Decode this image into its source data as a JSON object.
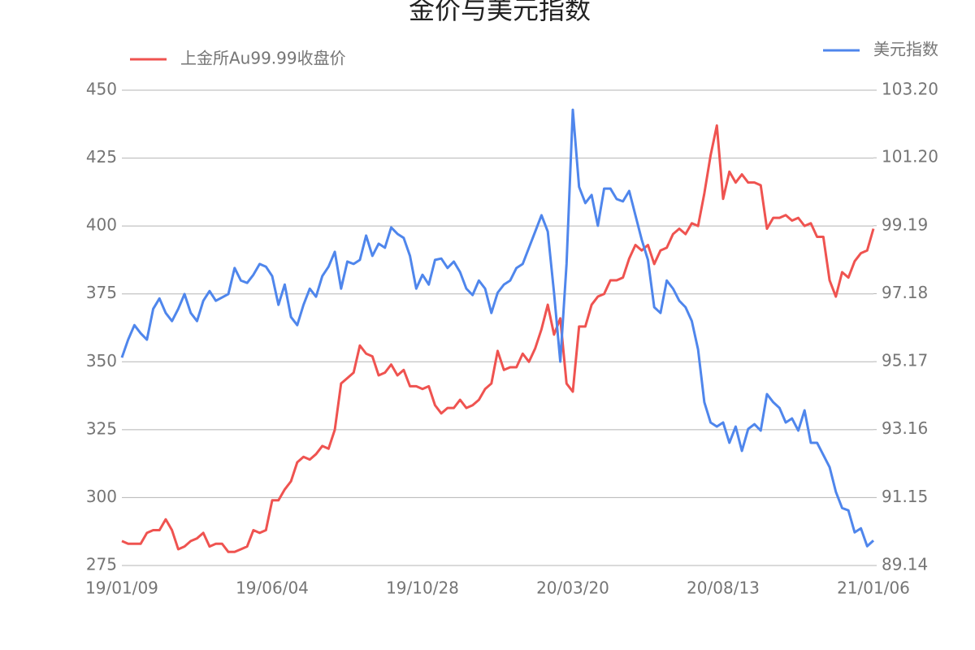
{
  "chart_data": {
    "type": "line",
    "title": "金价与美元指数",
    "categories": [
      "19/01/09",
      null,
      null,
      null,
      null,
      null,
      null,
      null,
      null,
      null,
      null,
      null,
      null,
      null,
      null,
      null,
      null,
      null,
      null,
      null,
      null,
      null,
      null,
      null,
      "19/06/04",
      null,
      null,
      null,
      null,
      null,
      null,
      null,
      null,
      null,
      null,
      null,
      null,
      null,
      null,
      null,
      null,
      null,
      null,
      null,
      null,
      null,
      null,
      null,
      "19/10/28",
      null,
      null,
      null,
      null,
      null,
      null,
      null,
      null,
      null,
      null,
      null,
      null,
      null,
      null,
      null,
      null,
      null,
      null,
      null,
      null,
      null,
      null,
      null,
      "20/03/20",
      null,
      null,
      null,
      null,
      null,
      null,
      null,
      null,
      null,
      null,
      null,
      null,
      null,
      null,
      null,
      null,
      null,
      null,
      null,
      null,
      null,
      null,
      null,
      "20/08/13",
      null,
      null,
      null,
      null,
      null,
      null,
      null,
      null,
      null,
      null,
      null,
      null,
      null,
      null,
      null,
      null,
      null,
      null,
      null,
      null,
      null,
      null,
      null,
      "21/01/06"
    ],
    "series": [
      {
        "name": "上金所Au99.99收盘价",
        "color": "#ef5350",
        "values": [
          284,
          283,
          283,
          283,
          287,
          288,
          288,
          292,
          288,
          281,
          282,
          284,
          285,
          287,
          282,
          283,
          283,
          280,
          280,
          281,
          282,
          288,
          287,
          288,
          299,
          299,
          303,
          306,
          313,
          315,
          314,
          316,
          319,
          318,
          325,
          342,
          344,
          346,
          356,
          353,
          352,
          345,
          346,
          349,
          345,
          347,
          341,
          341,
          340,
          341,
          334,
          331,
          333,
          333,
          336,
          333,
          334,
          336,
          340,
          342,
          354,
          347,
          348,
          348,
          353,
          350,
          355,
          362,
          371,
          360,
          366,
          342,
          339,
          363,
          363,
          371,
          374,
          375,
          380,
          380,
          381,
          388,
          393,
          391,
          393,
          386,
          391,
          392,
          397,
          399,
          397,
          401,
          400,
          412,
          426,
          437,
          410,
          420,
          416,
          419,
          416,
          416,
          415,
          399,
          403,
          403,
          404,
          402,
          403,
          400,
          401,
          396,
          396,
          380,
          374,
          383,
          381,
          387,
          390,
          391,
          399
        ]
      },
      {
        "name": "美元指数",
        "color": "#4f86ec",
        "axis": "y2",
        "values": [
          95.29,
          95.82,
          96.25,
          96.01,
          95.82,
          96.73,
          97.04,
          96.61,
          96.37,
          96.73,
          97.17,
          96.61,
          96.37,
          96.97,
          97.26,
          96.97,
          97.07,
          97.17,
          97.94,
          97.57,
          97.5,
          97.74,
          98.06,
          97.98,
          97.7,
          96.85,
          97.45,
          96.49,
          96.25,
          96.85,
          97.33,
          97.09,
          97.7,
          97.98,
          98.42,
          97.33,
          98.13,
          98.06,
          98.18,
          98.9,
          98.3,
          98.66,
          98.54,
          99.14,
          98.95,
          98.83,
          98.3,
          97.33,
          97.74,
          97.45,
          98.18,
          98.22,
          97.94,
          98.13,
          97.82,
          97.33,
          97.14,
          97.57,
          97.33,
          96.61,
          97.21,
          97.45,
          97.57,
          97.94,
          98.06,
          98.54,
          99.02,
          99.5,
          99.02,
          97.21,
          95.17,
          98.06,
          102.62,
          100.34,
          99.86,
          100.1,
          99.19,
          100.29,
          100.29,
          99.98,
          99.91,
          100.22,
          99.5,
          98.78,
          98.18,
          96.78,
          96.61,
          97.57,
          97.33,
          96.97,
          96.78,
          96.37,
          95.53,
          93.97,
          93.37,
          93.25,
          93.37,
          92.77,
          93.25,
          92.53,
          93.18,
          93.32,
          93.13,
          94.21,
          93.97,
          93.8,
          93.37,
          93.49,
          93.13,
          93.73,
          92.77,
          92.77,
          92.41,
          92.05,
          91.32,
          90.84,
          90.77,
          90.12,
          90.24,
          89.71,
          89.88
        ]
      }
    ],
    "ylim": [
      275,
      450
    ],
    "yticks": [
      275,
      300,
      325,
      350,
      375,
      400,
      425,
      450
    ],
    "y2lim": [
      89.14,
      103.2
    ],
    "y2ticks": [
      89.14,
      91.15,
      93.16,
      95.17,
      97.18,
      99.19,
      {
        "value": 101.2,
        "label": "101.20"
      },
      {
        "value": 103.2,
        "label": "103.20"
      }
    ],
    "grid": true
  }
}
